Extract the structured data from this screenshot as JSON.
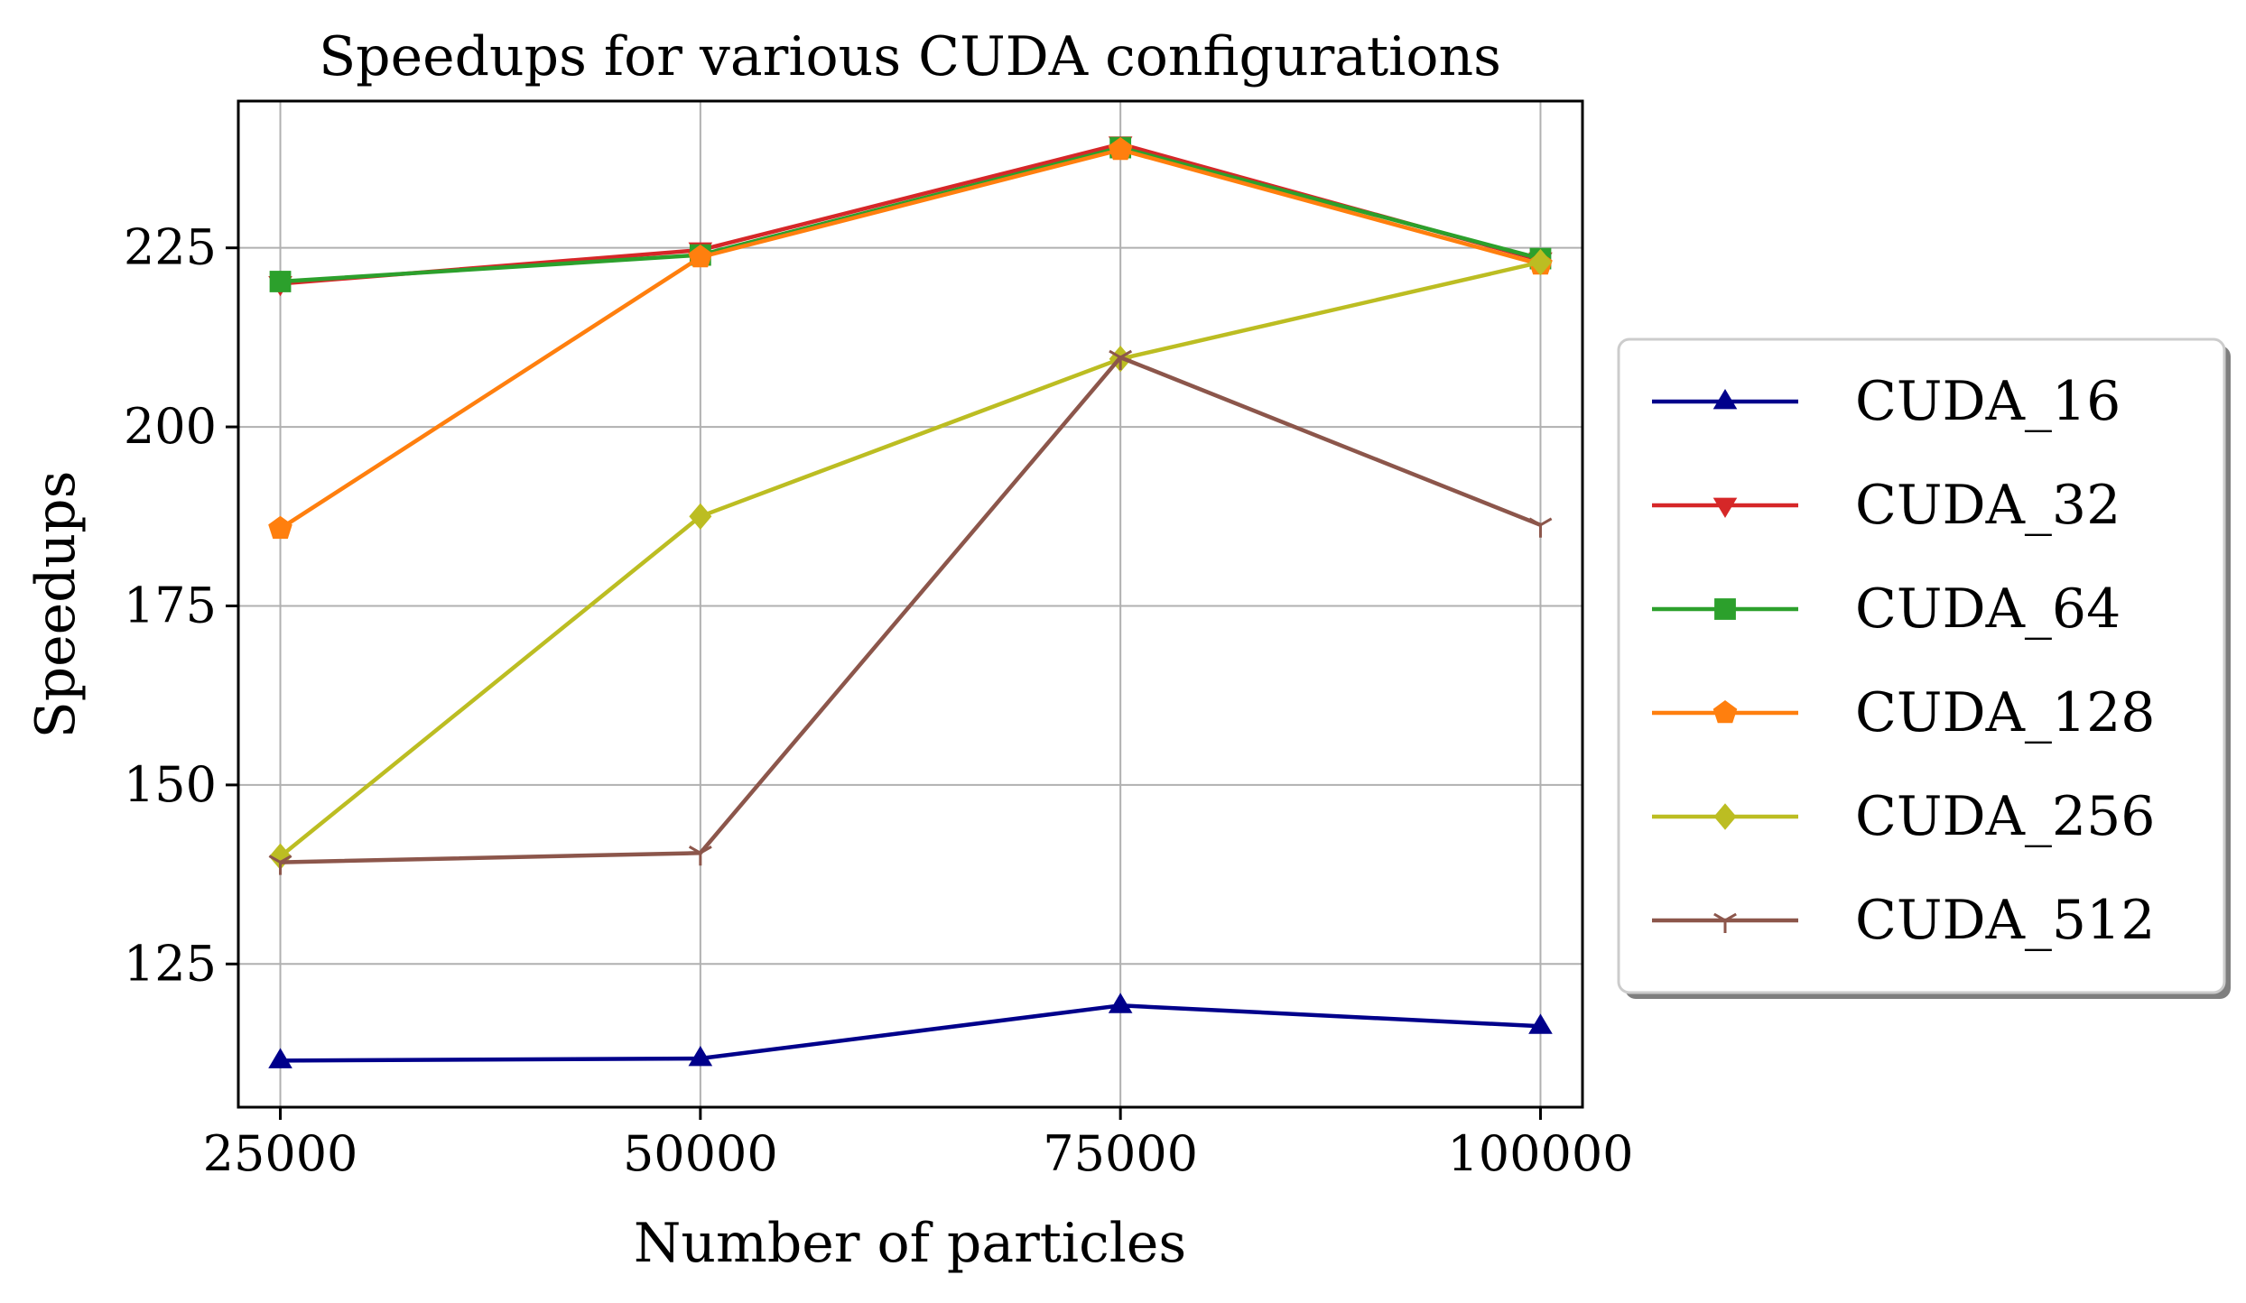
{
  "chart_data": {
    "type": "line",
    "title": "Speedups for various CUDA configurations",
    "xlabel": "Number of particles",
    "ylabel": "Speedups",
    "x": [
      25000,
      50000,
      75000,
      100000
    ],
    "x_tick_labels": [
      "25000",
      "50000",
      "75000",
      "100000"
    ],
    "y_ticks": [
      125,
      150,
      175,
      200,
      225
    ],
    "y_tick_labels": [
      "125",
      "150",
      "175",
      "200",
      "225"
    ],
    "xlim": [
      22500,
      102500
    ],
    "ylim": [
      105,
      245.5
    ],
    "grid": true,
    "legend_position": "right, outside plot",
    "series": [
      {
        "name": "CUDA_16",
        "values": [
          111.5,
          111.8,
          119.2,
          116.3
        ],
        "color": "#00008b",
        "marker": "triangle-up"
      },
      {
        "name": "CUDA_32",
        "values": [
          220.0,
          224.7,
          239.5,
          223.3
        ],
        "color": "#d62728",
        "marker": "triangle-down"
      },
      {
        "name": "CUDA_64",
        "values": [
          220.3,
          224.0,
          239.0,
          223.5
        ],
        "color": "#2ca02c",
        "marker": "square"
      },
      {
        "name": "CUDA_128",
        "values": [
          185.8,
          223.7,
          238.7,
          222.7
        ],
        "color": "#ff7f0e",
        "marker": "pentagon"
      },
      {
        "name": "CUDA_256",
        "values": [
          140.0,
          187.5,
          209.5,
          223.0
        ],
        "color": "#bcbd22",
        "marker": "diamond"
      },
      {
        "name": "CUDA_512",
        "values": [
          139.2,
          140.5,
          209.7,
          186.3
        ],
        "color": "#8c564b",
        "marker": "tri-down"
      }
    ]
  }
}
